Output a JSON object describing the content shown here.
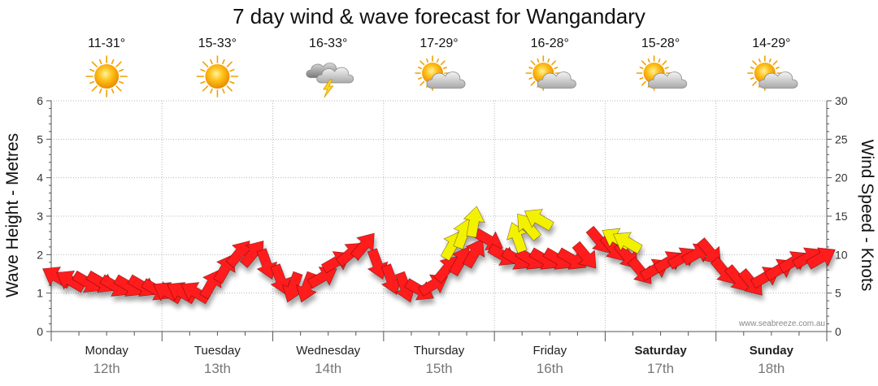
{
  "chart_data": {
    "type": "line",
    "title": "7 day wind & wave forecast for Wangandary",
    "ylabel_left": "Wave Height - Metres",
    "ylabel_right": "Wind Speed - Knots",
    "ylim_left": [
      0,
      6
    ],
    "ylim_right": [
      0,
      30
    ],
    "yticks_left": [
      "0",
      "1",
      "2",
      "3",
      "4",
      "5",
      "6"
    ],
    "yticks_right": [
      "0",
      "5",
      "10",
      "15",
      "20",
      "25",
      "30"
    ],
    "grid": true,
    "credit": "www.seabreeze.com.au",
    "days": [
      {
        "day": "Monday",
        "date": "12th",
        "temp": "11-31°",
        "icon": "sun-icon",
        "bold": false
      },
      {
        "day": "Tuesday",
        "date": "13th",
        "temp": "15-33°",
        "icon": "sun-icon",
        "bold": false
      },
      {
        "day": "Wednesday",
        "date": "14th",
        "temp": "16-33°",
        "icon": "storm-icon",
        "bold": false
      },
      {
        "day": "Thursday",
        "date": "15th",
        "temp": "17-29°",
        "icon": "partly-cloudy-icon",
        "bold": false
      },
      {
        "day": "Friday",
        "date": "16th",
        "temp": "16-28°",
        "icon": "partly-cloudy-icon",
        "bold": false
      },
      {
        "day": "Saturday",
        "date": "17th",
        "temp": "15-28°",
        "icon": "partly-cloudy-icon",
        "bold": true
      },
      {
        "day": "Sunday",
        "date": "18th",
        "temp": "14-29°",
        "icon": "partly-cloudy-icon",
        "bold": true
      }
    ],
    "series": [
      {
        "name": "",
        "color": "#ff1a1a",
        "x": [
          0.0,
          0.125,
          0.25,
          0.375,
          0.5,
          0.625,
          0.75,
          0.875,
          1.0,
          1.125,
          1.25,
          1.375,
          1.5,
          1.625,
          1.75,
          1.875,
          2.0,
          2.125,
          2.25,
          2.375,
          2.5,
          2.625,
          2.75,
          2.875,
          3.0,
          3.125,
          3.25,
          3.375,
          3.5,
          3.625,
          3.75,
          3.875,
          4.0,
          4.125,
          4.25,
          4.375,
          4.5,
          4.625,
          4.75,
          4.875,
          5.0,
          5.125,
          5.25,
          5.375,
          5.5,
          5.625,
          5.75,
          5.875,
          6.0,
          6.125,
          6.25,
          6.375,
          6.5,
          6.625,
          6.75,
          6.875
        ],
        "y": [
          7,
          6.5,
          6.5,
          6.5,
          6,
          6,
          6,
          5.5,
          5,
          5,
          5,
          6,
          8,
          10,
          10,
          9,
          7,
          6,
          6,
          7,
          9,
          10,
          11,
          9,
          7,
          6,
          5.5,
          6,
          8,
          9,
          10,
          12,
          10,
          9.5,
          9.5,
          9.5,
          9.5,
          9.5,
          10,
          12,
          11,
          10,
          8,
          8,
          9,
          9.5,
          10,
          10.5,
          8,
          7,
          6.5,
          7,
          8,
          9,
          9.5,
          9.5
        ],
        "direction_deg": [
          300,
          300,
          120,
          120,
          120,
          120,
          120,
          120,
          300,
          300,
          300,
          30,
          30,
          40,
          40,
          160,
          160,
          200,
          200,
          60,
          60,
          50,
          40,
          160,
          160,
          160,
          120,
          60,
          40,
          30,
          30,
          120,
          120,
          120,
          120,
          120,
          120,
          120,
          140,
          140,
          140,
          140,
          140,
          60,
          60,
          60,
          60,
          140,
          140,
          140,
          140,
          60,
          60,
          60,
          60,
          60
        ],
        "wind_y_scale": "knots"
      },
      {
        "name": "",
        "color": "#f2f200",
        "x": [
          3.55,
          3.65,
          3.75,
          4.15,
          4.25,
          4.35,
          5.05,
          5.15
        ],
        "y": [
          11,
          12.5,
          14,
          12,
          13.5,
          14.5,
          12,
          11.5
        ],
        "direction_deg": [
          30,
          20,
          10,
          340,
          320,
          300,
          300,
          300
        ],
        "wind_y_scale": "knots"
      }
    ]
  }
}
